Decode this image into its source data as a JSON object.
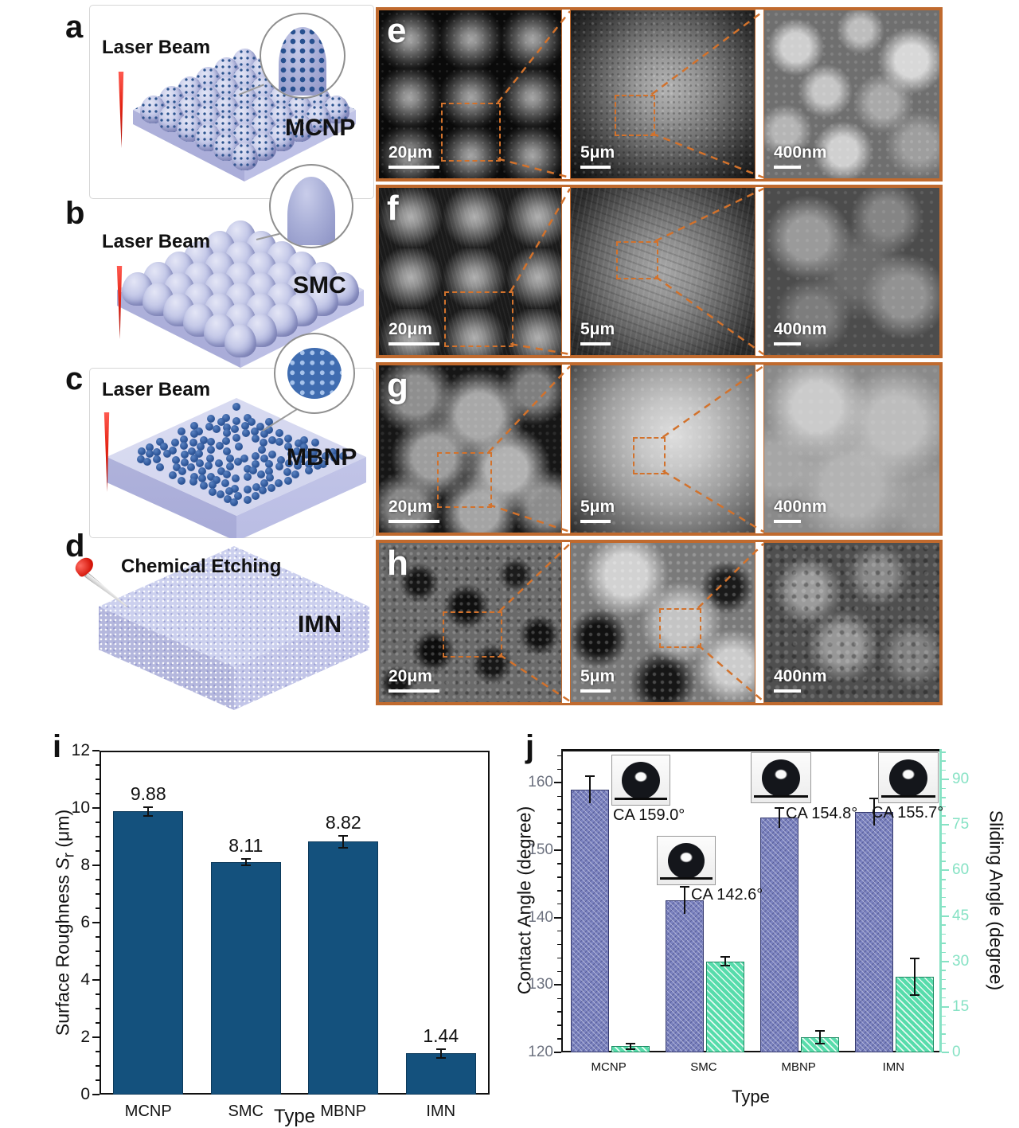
{
  "panels": {
    "a": {
      "letter": "a",
      "process_label": "Laser Beam",
      "type_label": "MCNP"
    },
    "b": {
      "letter": "b",
      "process_label": "Laser Beam",
      "type_label": "SMC"
    },
    "c": {
      "letter": "c",
      "process_label": "Laser Beam",
      "type_label": "MBNP"
    },
    "d": {
      "letter": "d",
      "process_label": "Chemical Etching",
      "type_label": "IMN"
    },
    "e": {
      "letter": "e",
      "scales": [
        "20μm",
        "5μm",
        "400nm"
      ]
    },
    "f": {
      "letter": "f",
      "scales": [
        "20μm",
        "5μm",
        "400nm"
      ]
    },
    "g": {
      "letter": "g",
      "scales": [
        "20μm",
        "5μm",
        "400nm"
      ]
    },
    "h": {
      "letter": "h",
      "scales": [
        "20μm",
        "5μm",
        "400nm"
      ]
    },
    "i": {
      "letter": "i"
    },
    "j": {
      "letter": "j"
    }
  },
  "chart_data": [
    {
      "panel": "i",
      "type": "bar",
      "categories": [
        "MCNP",
        "SMC",
        "MBNP",
        "IMN"
      ],
      "values": [
        9.88,
        8.11,
        8.82,
        1.44
      ],
      "errors": [
        0.15,
        0.12,
        0.2,
        0.15
      ],
      "value_labels": [
        "9.88",
        "8.11",
        "8.82",
        "1.44"
      ],
      "xlabel": "Type",
      "ylabel": {
        "prefix": "Surface Roughness ",
        "symbol": "S",
        "subscript": "r",
        "suffix": " (μm)"
      },
      "ylim": [
        0,
        12
      ],
      "yticks": [
        0,
        2,
        4,
        6,
        8,
        10,
        12
      ],
      "bar_color": "#14517d",
      "grid": false,
      "legend": "none"
    },
    {
      "panel": "j",
      "type": "grouped-bar-dual-axis",
      "categories": [
        "MCNP",
        "SMC",
        "MBNP",
        "IMN"
      ],
      "series": [
        {
          "name": "Contact Angle",
          "axis": "left",
          "values": [
            159.0,
            142.6,
            154.8,
            155.7
          ],
          "errors": [
            2.0,
            2.0,
            1.5,
            2.0
          ],
          "color": "#7b82bf"
        },
        {
          "name": "Sliding Angle",
          "axis": "right",
          "values": [
            2,
            30,
            5,
            25
          ],
          "errors": [
            1.0,
            1.5,
            2.0,
            6.0
          ],
          "color": "#57dcab"
        }
      ],
      "xlabel": "Type",
      "ylabel_left": "Contact Angle (degree)",
      "ylabel_right": "Sliding Angle (degree)",
      "ylim_left": [
        120,
        165
      ],
      "yticks_left": [
        120,
        130,
        140,
        150,
        160
      ],
      "ylim_right": [
        0,
        100
      ],
      "yticks_right": [
        0,
        15,
        30,
        45,
        60,
        75,
        90
      ],
      "annotations": [
        {
          "text": "CA 159.0°"
        },
        {
          "text": "CA 142.6°"
        },
        {
          "text": "CA 154.8°"
        },
        {
          "text": "CA 155.7°"
        }
      ],
      "grid": false
    }
  ],
  "colors": {
    "frame_orange": "#c06a2e",
    "dash_orange": "#d2722c",
    "bar_blue": "#14517d",
    "bar_purple": "#7b82bf",
    "bar_green": "#57dcab",
    "right_axis_mint": "#86e2c4",
    "left_tick_grey": "#6e7380",
    "laser_red": "#e42313"
  }
}
